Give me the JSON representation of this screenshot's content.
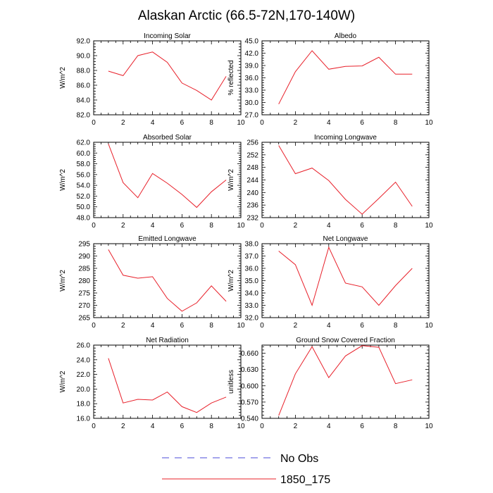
{
  "title": "Alaskan Arctic (66.5-72N,170-140W)",
  "legend": {
    "obs_label": "No Obs",
    "obs_color": "#4b4bd8",
    "model_label": "1850_175",
    "model_color": "#e8202a"
  },
  "chart_data": [
    {
      "type": "line",
      "title": "Incoming Solar",
      "ylabel": "W/m^2",
      "xlim": [
        0,
        10
      ],
      "xticks": [
        0,
        2,
        4,
        6,
        8,
        10
      ],
      "ylim": [
        82,
        92
      ],
      "yticks": [
        "82.0",
        "84.0",
        "86.0",
        "88.0",
        "90.0",
        "92.0"
      ],
      "series": [
        {
          "name": "1850_175",
          "x": [
            1,
            2,
            3,
            4,
            5,
            6,
            7,
            8,
            9
          ],
          "values": [
            87.9,
            87.3,
            90.0,
            90.5,
            89.1,
            86.3,
            85.3,
            84.0,
            87.2
          ]
        }
      ]
    },
    {
      "type": "line",
      "title": "Albedo",
      "ylabel": "% reflected",
      "xlim": [
        0,
        10
      ],
      "xticks": [
        0,
        2,
        4,
        6,
        8,
        10
      ],
      "ylim": [
        27,
        45
      ],
      "yticks": [
        "27.0",
        "30.0",
        "33.0",
        "36.0",
        "39.0",
        "42.0",
        "45.0"
      ],
      "series": [
        {
          "name": "1850_175",
          "x": [
            1,
            2,
            3,
            4,
            5,
            6,
            7,
            8,
            9
          ],
          "values": [
            29.6,
            37.5,
            42.6,
            38.1,
            38.8,
            38.9,
            41.0,
            36.9,
            36.9
          ]
        }
      ]
    },
    {
      "type": "line",
      "title": "Absorbed Solar",
      "ylabel": "W/m^2",
      "xlim": [
        0,
        10
      ],
      "xticks": [
        0,
        2,
        4,
        6,
        8,
        10
      ],
      "ylim": [
        48,
        62
      ],
      "yticks": [
        "48.0",
        "50.0",
        "52.0",
        "54.0",
        "56.0",
        "58.0",
        "60.0",
        "62.0"
      ],
      "series": [
        {
          "name": "1850_175",
          "x": [
            1,
            2,
            3,
            4,
            5,
            6,
            7,
            8,
            9
          ],
          "values": [
            61.7,
            54.5,
            51.7,
            56.2,
            54.4,
            52.3,
            49.9,
            52.8,
            55.0
          ]
        }
      ]
    },
    {
      "type": "line",
      "title": "Incoming Longwave",
      "ylabel": "W/m^2",
      "xlim": [
        0,
        10
      ],
      "xticks": [
        0,
        2,
        4,
        6,
        8,
        10
      ],
      "ylim": [
        232,
        256
      ],
      "yticks": [
        "232",
        "236",
        "240",
        "244",
        "248",
        "252",
        "256"
      ],
      "series": [
        {
          "name": "1850_175",
          "x": [
            1,
            2,
            3,
            4,
            5,
            6,
            7,
            8,
            9
          ],
          "values": [
            255.0,
            246.0,
            247.8,
            243.8,
            237.8,
            233.1,
            238.1,
            243.3,
            235.6
          ]
        }
      ]
    },
    {
      "type": "line",
      "title": "Emitted Longwave",
      "ylabel": "W/m^2",
      "xlim": [
        0,
        10
      ],
      "xticks": [
        0,
        2,
        4,
        6,
        8,
        10
      ],
      "ylim": [
        265,
        295
      ],
      "yticks": [
        "265",
        "270",
        "275",
        "280",
        "285",
        "290",
        "295"
      ],
      "series": [
        {
          "name": "1850_175",
          "x": [
            1,
            2,
            3,
            4,
            5,
            6,
            7,
            8,
            9
          ],
          "values": [
            292.6,
            282.2,
            281.0,
            281.6,
            272.8,
            267.6,
            271.0,
            277.9,
            271.6
          ]
        }
      ]
    },
    {
      "type": "line",
      "title": "Net Longwave",
      "ylabel": "W/m^2",
      "xlim": [
        0,
        10
      ],
      "xticks": [
        0,
        2,
        4,
        6,
        8,
        10
      ],
      "ylim": [
        32,
        38
      ],
      "yticks": [
        "32.0",
        "33.0",
        "34.0",
        "35.0",
        "36.0",
        "37.0",
        "38.0"
      ],
      "series": [
        {
          "name": "1850_175",
          "x": [
            1,
            2,
            3,
            4,
            5,
            6,
            7,
            8,
            9
          ],
          "values": [
            37.4,
            36.3,
            33.0,
            37.7,
            34.8,
            34.5,
            33.0,
            34.6,
            36.0
          ]
        }
      ]
    },
    {
      "type": "line",
      "title": "Net Radiation",
      "ylabel": "W/m^2",
      "xlim": [
        0,
        10
      ],
      "xticks": [
        0,
        2,
        4,
        6,
        8,
        10
      ],
      "ylim": [
        16,
        26
      ],
      "yticks": [
        "16.0",
        "18.0",
        "20.0",
        "22.0",
        "24.0",
        "26.0"
      ],
      "series": [
        {
          "name": "1850_175",
          "x": [
            1,
            2,
            3,
            4,
            5,
            6,
            7,
            8,
            9
          ],
          "values": [
            24.2,
            18.1,
            18.6,
            18.5,
            19.6,
            17.6,
            16.8,
            18.1,
            18.9
          ]
        }
      ]
    },
    {
      "type": "line",
      "title": "Ground Snow Covered Fraction",
      "ylabel": "unitless",
      "xlim": [
        0,
        10
      ],
      "xticks": [
        0,
        2,
        4,
        6,
        8,
        10
      ],
      "ylim": [
        0.54,
        0.675
      ],
      "yticks": [
        "0.540",
        "0.570",
        "0.600",
        "0.630",
        "0.660"
      ],
      "series": [
        {
          "name": "1850_175",
          "x": [
            1,
            2,
            3,
            4,
            5,
            6,
            7,
            8,
            9
          ],
          "values": [
            0.545,
            0.622,
            0.672,
            0.615,
            0.655,
            0.674,
            0.671,
            0.604,
            0.611
          ]
        }
      ]
    }
  ]
}
